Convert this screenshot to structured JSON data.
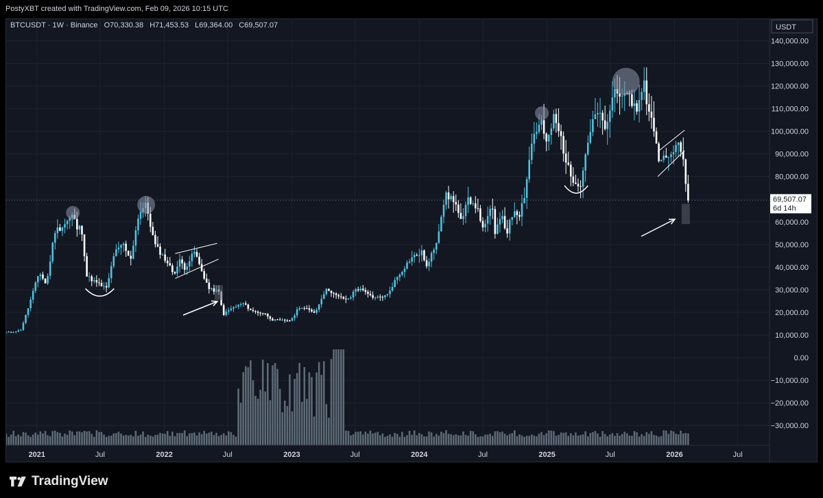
{
  "header": {
    "caption": "PostyXBT created with TradingView.com, Feb 09, 2026 10:15 UTC"
  },
  "legend": {
    "symbol": "BTCUSDT · 1W · Binance",
    "open": "O70,330.38",
    "high": "H71,453.53",
    "low": "L69,364.00",
    "close": "C69,507.07"
  },
  "footer": {
    "brand": "TradingView"
  },
  "colors": {
    "up": "#4fc3e0",
    "down": "#ffffff",
    "background": "#131722",
    "grid": "#1f2330",
    "text": "#d1d4dc",
    "volume": "#6b7a85"
  },
  "chart_data": {
    "type": "candlestick",
    "symbol": "BTCUSDT",
    "interval": "1W",
    "exchange": "Binance",
    "currency_label": "USDT",
    "y_ticks": [
      140000,
      130000,
      120000,
      110000,
      100000,
      90000,
      80000,
      70000,
      60000,
      50000,
      40000,
      30000,
      20000,
      10000,
      0,
      -10000,
      -20000,
      -30000
    ],
    "y_tick_labels": [
      "140,000.00",
      "130,000.00",
      "120,000.00",
      "110,000.00",
      "100,000.00",
      "90,000.00",
      "80,000.00",
      "70,000.00",
      "60,000.00",
      "50,000.00",
      "40,000.00",
      "30,000.00",
      "20,000.00",
      "10,000.00",
      "0.00",
      "−10,000.00",
      "−20,000.00",
      "−30,000.00"
    ],
    "ylim": [
      -37500,
      146500
    ],
    "x_start": "2020-10-05",
    "x_end": "2026-09-30",
    "x_ticks": [
      {
        "label": "2021",
        "date": "2021-01-01",
        "bold": true
      },
      {
        "label": "Jul",
        "date": "2021-07-01",
        "bold": false
      },
      {
        "label": "2022",
        "date": "2022-01-01",
        "bold": true
      },
      {
        "label": "Jul",
        "date": "2022-07-01",
        "bold": false
      },
      {
        "label": "2023",
        "date": "2023-01-01",
        "bold": true
      },
      {
        "label": "Jul",
        "date": "2023-07-01",
        "bold": false
      },
      {
        "label": "2024",
        "date": "2024-01-01",
        "bold": true
      },
      {
        "label": "Jul",
        "date": "2024-07-01",
        "bold": false
      },
      {
        "label": "2025",
        "date": "2025-01-01",
        "bold": true
      },
      {
        "label": "Jul",
        "date": "2025-07-01",
        "bold": false
      },
      {
        "label": "2026",
        "date": "2026-01-01",
        "bold": true
      },
      {
        "label": "Jul",
        "date": "2026-07-01",
        "bold": false
      }
    ],
    "last_price": {
      "value": 69507.07,
      "label": "69,507.07",
      "countdown": "6d 14h"
    },
    "close_path": [
      {
        "date": "2020-10-05",
        "close": 11000
      },
      {
        "date": "2020-11-15",
        "close": 12000
      },
      {
        "date": "2020-12-01",
        "close": 19000
      },
      {
        "date": "2021-01-08",
        "close": 38000
      },
      {
        "date": "2021-01-28",
        "close": 32000
      },
      {
        "date": "2021-02-21",
        "close": 56000
      },
      {
        "date": "2021-03-15",
        "close": 58000
      },
      {
        "date": "2021-04-14",
        "close": 63000
      },
      {
        "date": "2021-04-28",
        "close": 56000
      },
      {
        "date": "2021-05-08",
        "close": 58500
      },
      {
        "date": "2021-05-24",
        "close": 36000
      },
      {
        "date": "2021-06-21",
        "close": 33000
      },
      {
        "date": "2021-07-20",
        "close": 30500
      },
      {
        "date": "2021-08-10",
        "close": 46000
      },
      {
        "date": "2021-09-06",
        "close": 50000
      },
      {
        "date": "2021-09-25",
        "close": 42500
      },
      {
        "date": "2021-10-20",
        "close": 64000
      },
      {
        "date": "2021-11-10",
        "close": 67500
      },
      {
        "date": "2021-12-04",
        "close": 50000
      },
      {
        "date": "2022-01-10",
        "close": 42000
      },
      {
        "date": "2022-01-28",
        "close": 37000
      },
      {
        "date": "2022-02-15",
        "close": 43000
      },
      {
        "date": "2022-03-01",
        "close": 39500
      },
      {
        "date": "2022-03-29",
        "close": 47000
      },
      {
        "date": "2022-04-12",
        "close": 40500
      },
      {
        "date": "2022-05-10",
        "close": 30000
      },
      {
        "date": "2022-06-05",
        "close": 29500
      },
      {
        "date": "2022-06-18",
        "close": 19000
      },
      {
        "date": "2022-07-10",
        "close": 21500
      },
      {
        "date": "2022-08-14",
        "close": 24000
      },
      {
        "date": "2022-09-10",
        "close": 20500
      },
      {
        "date": "2022-10-15",
        "close": 19500
      },
      {
        "date": "2022-11-09",
        "close": 16500
      },
      {
        "date": "2022-12-31",
        "close": 16500
      },
      {
        "date": "2023-01-21",
        "close": 22500
      },
      {
        "date": "2023-03-10",
        "close": 20000
      },
      {
        "date": "2023-03-31",
        "close": 28000
      },
      {
        "date": "2023-04-14",
        "close": 30500
      },
      {
        "date": "2023-05-10",
        "close": 27000
      },
      {
        "date": "2023-06-15",
        "close": 25500
      },
      {
        "date": "2023-07-01",
        "close": 30500
      },
      {
        "date": "2023-08-01",
        "close": 29500
      },
      {
        "date": "2023-08-20",
        "close": 26000
      },
      {
        "date": "2023-10-01",
        "close": 27500
      },
      {
        "date": "2023-10-25",
        "close": 34500
      },
      {
        "date": "2023-12-08",
        "close": 44000
      },
      {
        "date": "2024-01-10",
        "close": 46500
      },
      {
        "date": "2024-01-23",
        "close": 39500
      },
      {
        "date": "2024-02-20",
        "close": 52000
      },
      {
        "date": "2024-03-14",
        "close": 71500
      },
      {
        "date": "2024-04-10",
        "close": 70000
      },
      {
        "date": "2024-05-01",
        "close": 59000
      },
      {
        "date": "2024-05-21",
        "close": 70500
      },
      {
        "date": "2024-06-10",
        "close": 67500
      },
      {
        "date": "2024-07-05",
        "close": 56500
      },
      {
        "date": "2024-07-28",
        "close": 68000
      },
      {
        "date": "2024-08-05",
        "close": 54000
      },
      {
        "date": "2024-08-25",
        "close": 64000
      },
      {
        "date": "2024-09-06",
        "close": 54500
      },
      {
        "date": "2024-09-28",
        "close": 65500
      },
      {
        "date": "2024-10-14",
        "close": 63500
      },
      {
        "date": "2024-10-29",
        "close": 72500
      },
      {
        "date": "2024-11-12",
        "close": 88500
      },
      {
        "date": "2024-11-22",
        "close": 98500
      },
      {
        "date": "2024-12-17",
        "close": 104000
      },
      {
        "date": "2024-12-30",
        "close": 93500
      },
      {
        "date": "2025-01-20",
        "close": 106000
      },
      {
        "date": "2025-02-10",
        "close": 97000
      },
      {
        "date": "2025-02-28",
        "close": 84500
      },
      {
        "date": "2025-03-11",
        "close": 80000
      },
      {
        "date": "2025-04-08",
        "close": 76500
      },
      {
        "date": "2025-04-25",
        "close": 94500
      },
      {
        "date": "2025-05-22",
        "close": 108500
      },
      {
        "date": "2025-06-22",
        "close": 101000
      },
      {
        "date": "2025-07-14",
        "close": 119500
      },
      {
        "date": "2025-08-01",
        "close": 113500
      },
      {
        "date": "2025-08-14",
        "close": 121500
      },
      {
        "date": "2025-09-01",
        "close": 108500
      },
      {
        "date": "2025-09-22",
        "close": 112500
      },
      {
        "date": "2025-10-06",
        "close": 124500
      },
      {
        "date": "2025-10-12",
        "close": 111500
      },
      {
        "date": "2025-11-04",
        "close": 101000
      },
      {
        "date": "2025-11-21",
        "close": 84000
      },
      {
        "date": "2025-12-03",
        "close": 93000
      },
      {
        "date": "2025-12-17",
        "close": 86500
      },
      {
        "date": "2026-01-14",
        "close": 96500
      },
      {
        "date": "2026-01-25",
        "close": 88000
      },
      {
        "date": "2026-02-05",
        "close": 70300
      },
      {
        "date": "2026-02-09",
        "close": 69507
      }
    ]
  }
}
